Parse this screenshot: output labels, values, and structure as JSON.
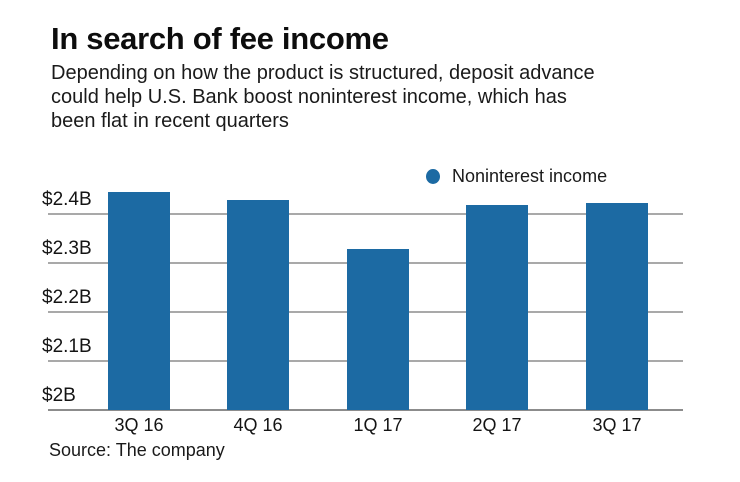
{
  "chart_data": {
    "type": "bar",
    "title": "In search of fee income",
    "subtitle_lines": [
      "Depending on how the product is structured, deposit advance",
      "could help U.S. Bank boost noninterest income, which has",
      "been flat in recent quarters"
    ],
    "legend": "Noninterest income",
    "legend_position": "top-right",
    "categories": [
      "3Q 16",
      "4Q 16",
      "1Q 17",
      "2Q 17",
      "3Q 17"
    ],
    "values": [
      2.445,
      2.429,
      2.329,
      2.418,
      2.422
    ],
    "unit": "USD billions",
    "xlabel": "",
    "ylabel": "",
    "ylim": [
      2.0,
      2.46
    ],
    "yticks": [
      {
        "value": 2.0,
        "label": "$2B"
      },
      {
        "value": 2.1,
        "label": "$2.1B"
      },
      {
        "value": 2.2,
        "label": "$2.2B"
      },
      {
        "value": 2.3,
        "label": "$2.3B"
      },
      {
        "value": 2.4,
        "label": "$2.4B"
      }
    ],
    "grid": "horizontal",
    "bar_color": "#1c6aa3",
    "gridline_color": "#a9a9a9",
    "axis_color": "#8c8c8c",
    "source": "Source: The company"
  }
}
